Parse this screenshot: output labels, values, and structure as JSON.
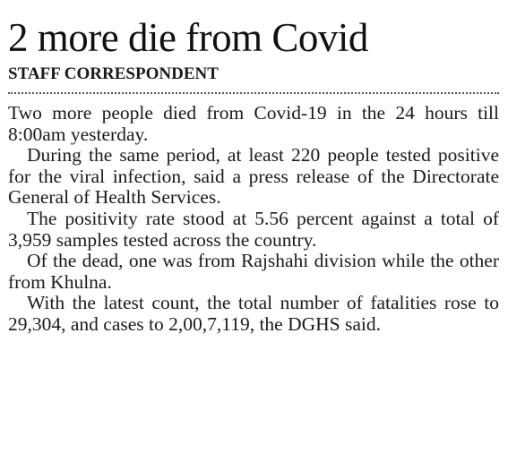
{
  "article": {
    "headline": "2 more die from Covid",
    "byline": "STAFF CORRESPONDENT",
    "paragraphs": [
      "Two more people died from Covid-19 in the 24 hours till 8:00am yesterday.",
      "During the same period, at least 220 people tested positive for the viral infection, said a press release of the Directorate General of Health Services.",
      "The positivity rate stood at 5.56 percent against a total of 3,959 samples tested across the country.",
      "Of the dead, one was from Rajshahi division while the other from Khulna.",
      "With the latest count, the total number of fatalities rose to 29,304, and cases to 2,00,7,119, the DGHS said."
    ]
  }
}
